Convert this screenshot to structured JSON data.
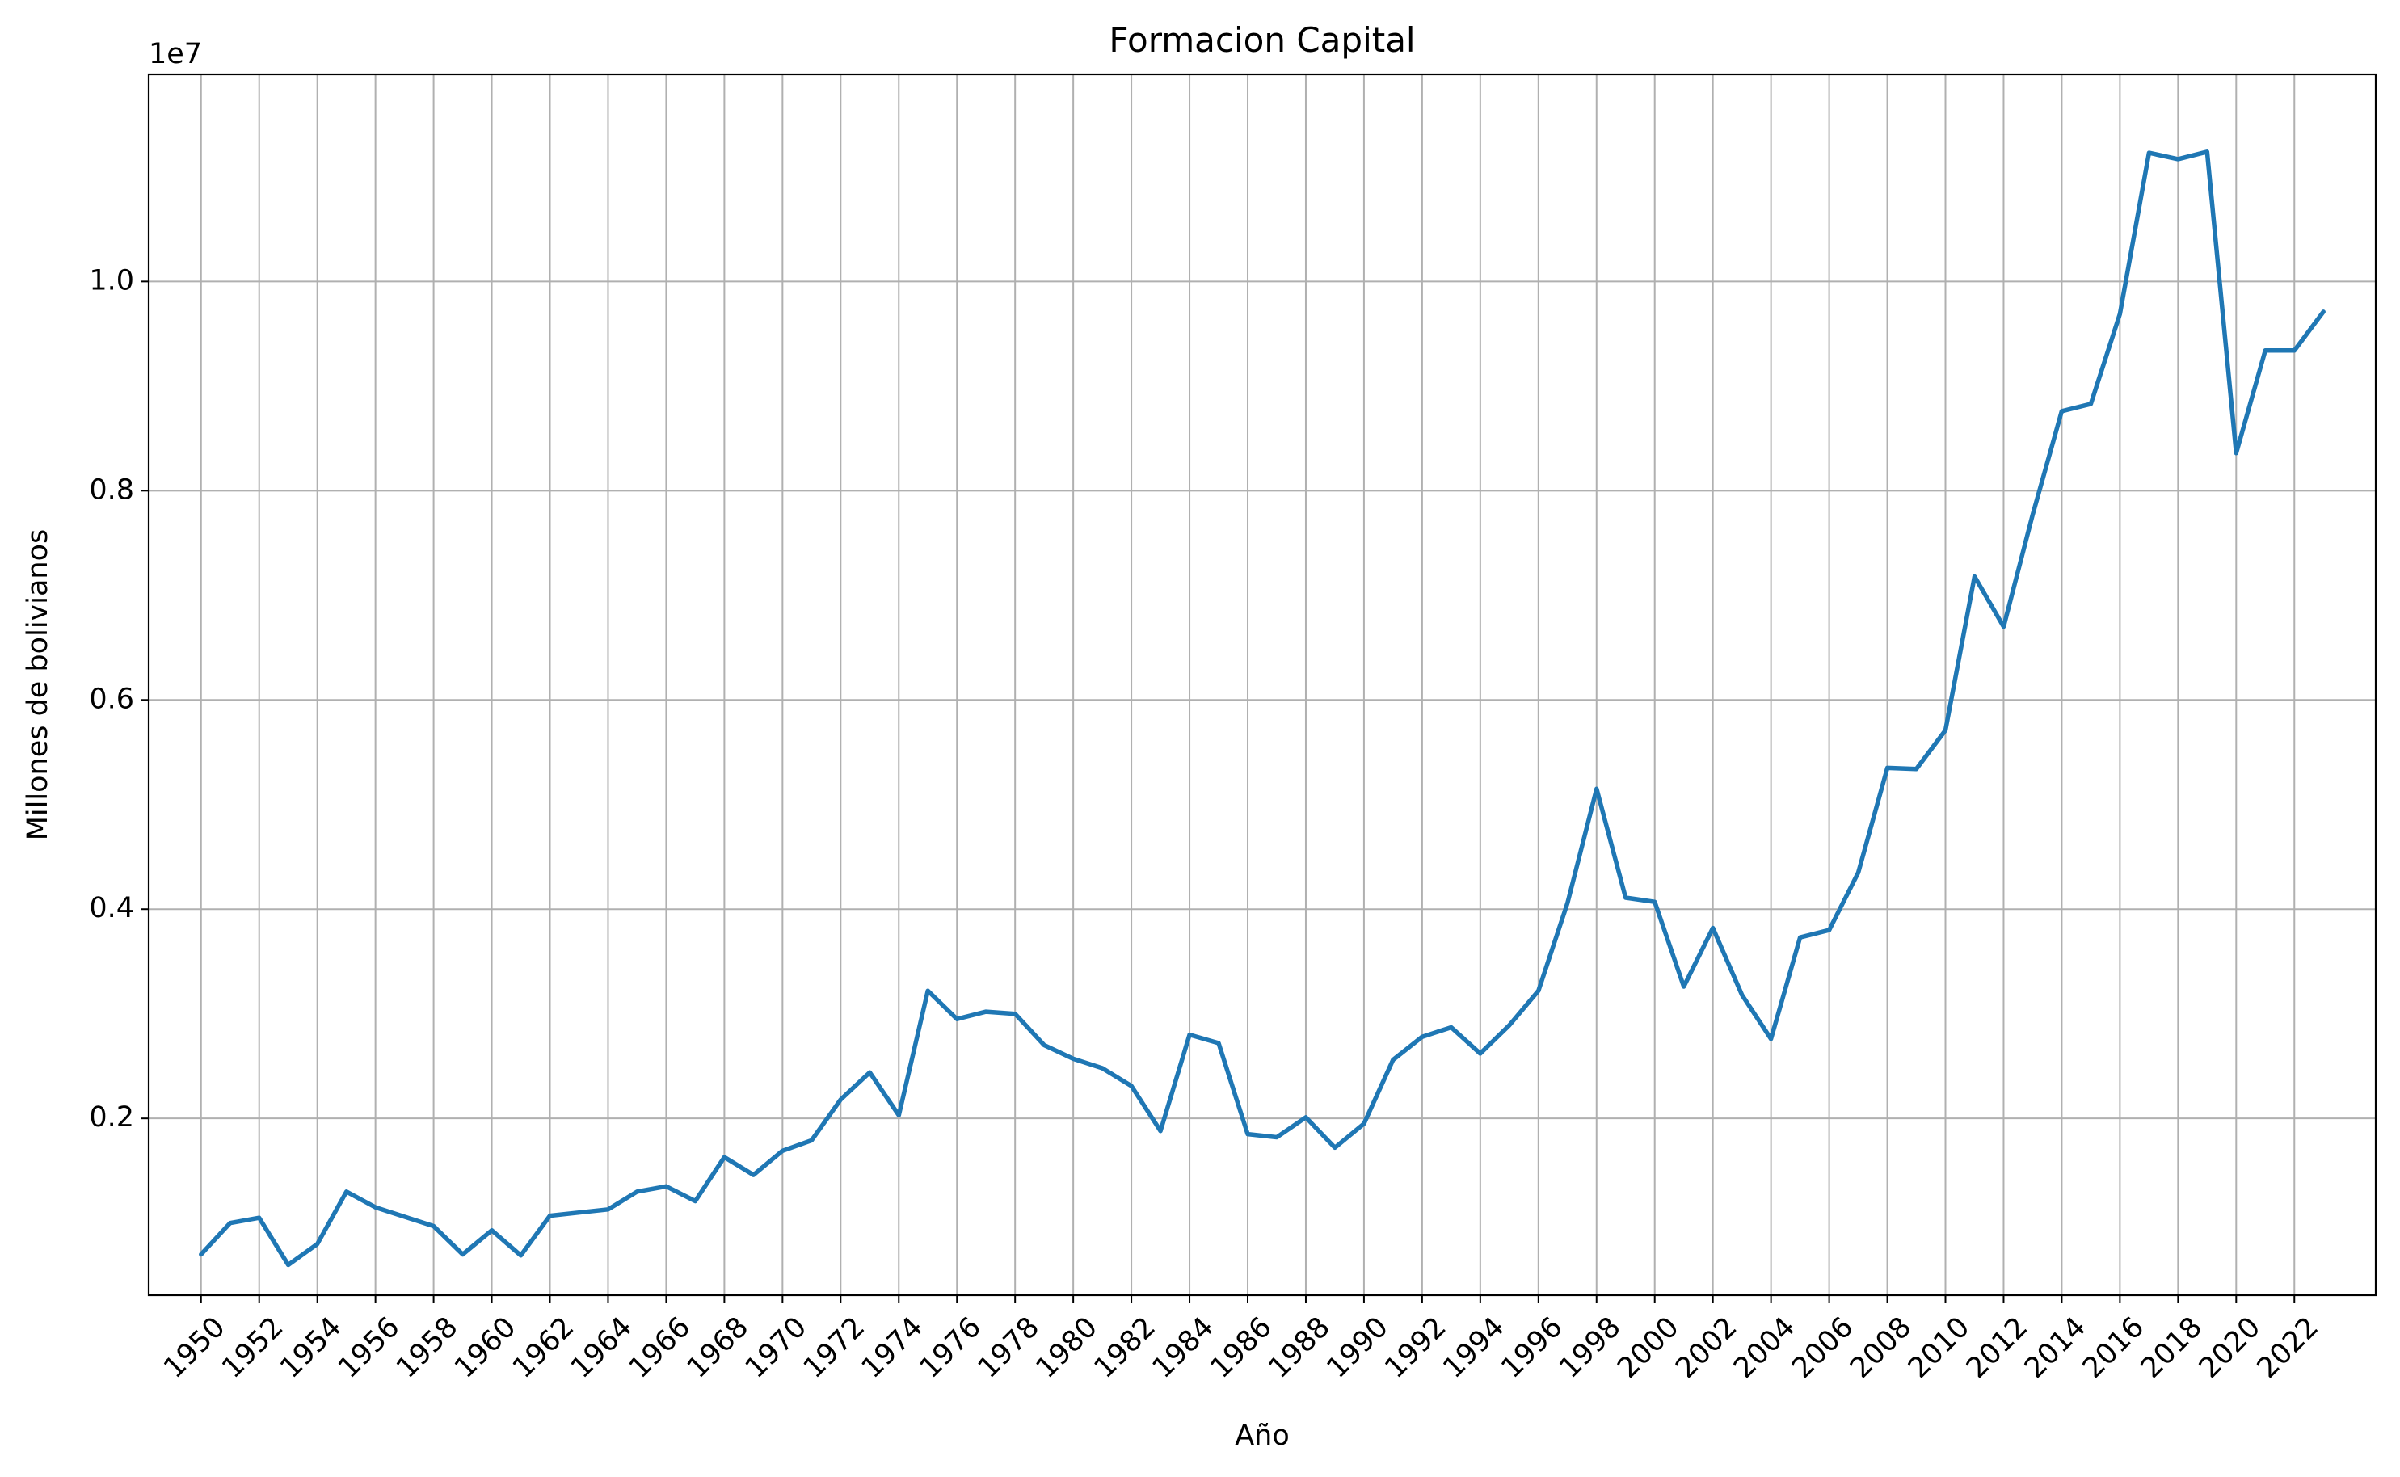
{
  "chart_data": {
    "type": "line",
    "title": "Formacion Capital",
    "xlabel": "Año",
    "ylabel": "Millones de bolivianos",
    "y_offset_label": "1e7",
    "y_scale": 10000000,
    "grid": true,
    "legend": "none",
    "line_color": "#1f77b4",
    "xlim": [
      1948.2,
      2024.8
    ],
    "ylim": [
      310000,
      11980000
    ],
    "x_ticks": [
      1950,
      1952,
      1954,
      1956,
      1958,
      1960,
      1962,
      1964,
      1966,
      1968,
      1970,
      1972,
      1974,
      1976,
      1978,
      1980,
      1982,
      1984,
      1986,
      1988,
      1990,
      1992,
      1994,
      1996,
      1998,
      2000,
      2002,
      2004,
      2006,
      2008,
      2010,
      2012,
      2014,
      2016,
      2018,
      2020,
      2022
    ],
    "y_ticks": [
      2000000,
      4000000,
      6000000,
      8000000,
      10000000
    ],
    "y_tick_labels": [
      "0.2",
      "0.4",
      "0.6",
      "0.8",
      "1.0"
    ],
    "series": [
      {
        "x": [
          1950,
          1951,
          1952,
          1953,
          1954,
          1955,
          1956,
          1957,
          1958,
          1959,
          1960,
          1961,
          1962,
          1963,
          1964,
          1965,
          1966,
          1967,
          1968,
          1969,
          1970,
          1971,
          1972,
          1973,
          1974,
          1975,
          1976,
          1977,
          1978,
          1979,
          1980,
          1981,
          1982,
          1983,
          1984,
          1985,
          1986,
          1987,
          1988,
          1989,
          1990,
          1991,
          1992,
          1993,
          1994,
          1995,
          1996,
          1997,
          1998,
          1999,
          2000,
          2001,
          2002,
          2003,
          2004,
          2005,
          2006,
          2007,
          2008,
          2009,
          2010,
          2011,
          2012,
          2013,
          2014,
          2015,
          2016,
          2017,
          2018,
          2019,
          2020,
          2021,
          2022,
          2023
        ],
        "y": [
          700000,
          1000000,
          1050000,
          600000,
          800000,
          1300000,
          1150000,
          1060000,
          970000,
          700000,
          930000,
          690000,
          1070000,
          1100000,
          1130000,
          1300000,
          1350000,
          1210000,
          1630000,
          1460000,
          1690000,
          1790000,
          2180000,
          2440000,
          2030000,
          3220000,
          2950000,
          3020000,
          3000000,
          2700000,
          2570000,
          2480000,
          2310000,
          1880000,
          2800000,
          2720000,
          1850000,
          1820000,
          2010000,
          1720000,
          1950000,
          2560000,
          2780000,
          2870000,
          2620000,
          2890000,
          3220000,
          4060000,
          5150000,
          4110000,
          4070000,
          3260000,
          3820000,
          3180000,
          2760000,
          3730000,
          3800000,
          4350000,
          5350000,
          5340000,
          5710000,
          7180000,
          6700000,
          7770000,
          8760000,
          8830000,
          9690000,
          11230000,
          11170000,
          11240000,
          8360000,
          9340000,
          9340000,
          9710000
        ]
      }
    ]
  }
}
